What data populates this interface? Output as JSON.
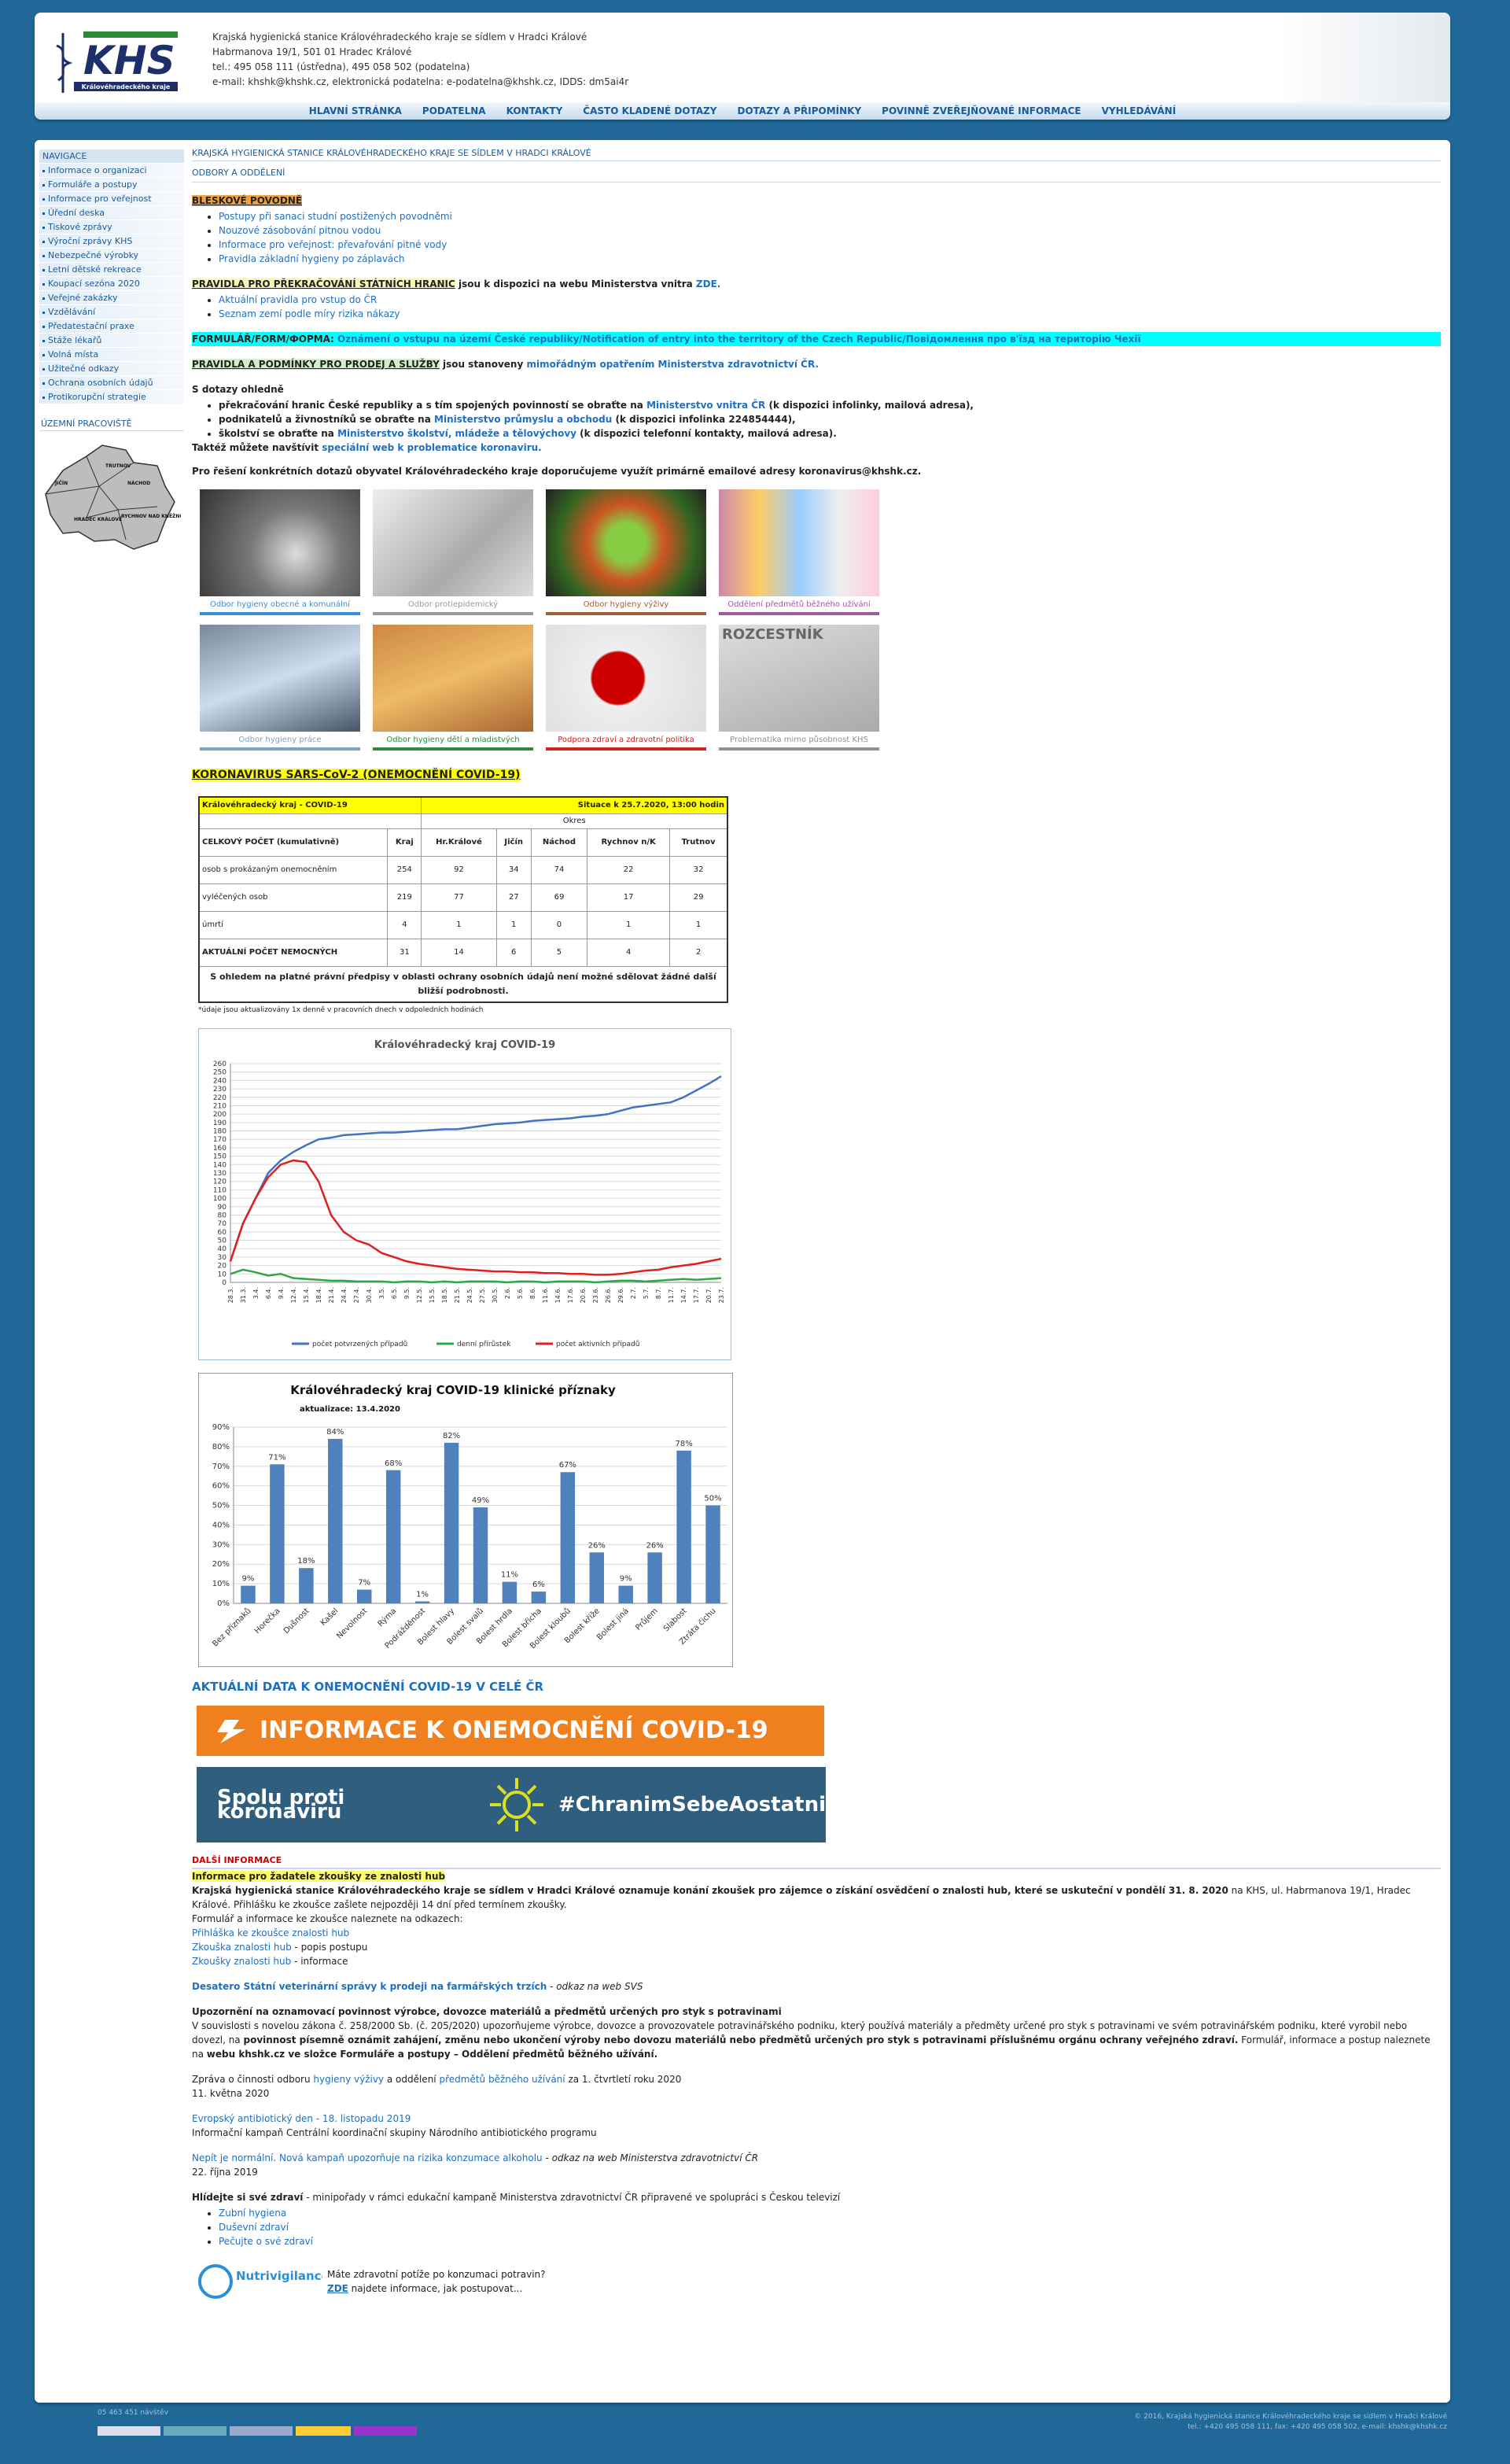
{
  "header": {
    "logo": "KHS",
    "logo_sub": "Královéhradeckého kraje",
    "lines": [
      "Krajská hygienická stanice Královéhradeckého kraje se sídlem v Hradci Králové",
      "Habrmanova 19/1, 501 01 Hradec Králové",
      "tel.: 495 058 111 (ústředna), 495 058 502 (podatelna)",
      "e-mail: khshk@khshk.cz, elektronická podatelna: e-podatelna@khshk.cz, IDDS: dm5ai4r"
    ]
  },
  "nav": [
    "HLAVNÍ STRÁNKA",
    "PODATELNA",
    "KONTAKTY",
    "ČASTO KLADENÉ DOTAZY",
    "DOTAZY A PŘIPOMÍNKY",
    "POVINNĚ ZVEŘEJŇOVANÉ INFORMACE",
    "VYHLEDÁVÁNÍ"
  ],
  "sidebar": {
    "title": "NAVIGACE",
    "links": [
      "Informace o organizaci",
      "Formuláře a postupy",
      "Informace pro veřejnost",
      "Úřední deska",
      "Tiskové zprávy",
      "Výroční zprávy KHS",
      "Nebezpečné výrobky",
      "Letní dětské rekreace",
      "Koupací sezóna 2020",
      "Veřejné zakázky",
      "Vzdělávání",
      "Předatestační praxe",
      "Stáže lékařů",
      "Volná místa",
      "Užitečné odkazy",
      "Ochrana osobních údajů",
      "Protikorupční strategie"
    ],
    "region_title": "ÚZEMNÍ PRACOVIŠTĚ",
    "map_labels": [
      "TRUTNOV",
      "JIČÍN",
      "NÁCHOD",
      "HRADEC KRÁLOVÉ",
      "RYCHNOV NAD KNĚŽNOU"
    ]
  },
  "content": {
    "breadcrumb": "KRAJSKÁ HYGIENICKÁ STANICE KRÁLOVÉHRADECKÉHO KRAJE SE SÍDLEM V HRADCI KRÁLOVÉ",
    "section": "ODBORY A ODDĚLENÍ",
    "floods": {
      "title": "BLESKOVÉ POVODNĚ",
      "links": [
        "Postupy při sanaci studní postižených povodněmi",
        "Nouzové zásobování pitnou vodou",
        "Informace pro veřejnost: převařování pitné vody",
        "Pravidla základní hygieny po záplavách"
      ]
    },
    "borders": {
      "title": "PRAVIDLA PRO PŘEKRAČOVÁNÍ STÁTNÍCH HRANIC",
      "text": " jsou k dispozici na webu Ministerstva vnitra ",
      "link": "ZDE.",
      "links": [
        "Aktuální pravidla pro vstup do ČR",
        "Seznam zemí podle míry rizika nákazy"
      ]
    },
    "form": {
      "title": "FORMULÁŘ/FORM/ФОРМА:",
      "link": " Oznámení o vstupu na území České republiky/Notification of entry into the territory of the Czech Republic/Повідомлення про в'їзд на територію Чехії"
    },
    "sales": {
      "title": "PRAVIDLA A PODMÍNKY PRO PRODEJ A SLUŽBY",
      "text": " jsou stanoveny ",
      "link": "mimořádným opatřením Ministerstva zdravotnictví ČR."
    },
    "questions": {
      "title": "S dotazy ohledně",
      "items": [
        {
          "before": "překračování hranic České republiky a s tím spojených povinností se obraťte na ",
          "link": "Ministerstvo vnitra ČR",
          "after": " (k dispozici infolinky, mailová adresa),"
        },
        {
          "before": "podnikatelů a živnostníků se obraťte na ",
          "link": "Ministerstvo průmyslu a obchodu",
          "after": " (k dispozici infolinka 224854444),"
        },
        {
          "before": "školství se obraťte na ",
          "link": "Ministerstvo školství, mládeže a tělovýchovy",
          "after": " (k dispozici telefonní kontakty, mailová adresa)."
        }
      ],
      "visit": "Taktéž můžete navštívit ",
      "visit_link": "speciální web k problematice koronaviru.",
      "email_note": "Pro řešení konkrétních dotazů obyvatel Královéhradeckého kraje doporučujeme využít primárně emailové adresy koronavirus@khshk.cz."
    },
    "tiles": [
      {
        "label": "Odbor hygieny obecné a komunální",
        "color": "#3b8fd6"
      },
      {
        "label": "Odbor protiepidemický",
        "color": "#9a9a9a"
      },
      {
        "label": "Odbor hygieny výživy",
        "color": "#a0603a"
      },
      {
        "label": "Oddělení předmětů běžného užívání",
        "color": "#a05aa0"
      },
      {
        "label": "Odbor hygieny práce",
        "color": "#7f9fc0"
      },
      {
        "label": "Odbor hygieny dětí a mladistvých",
        "color": "#2e8b3e"
      },
      {
        "label": "Podpora zdraví a zdravotní politika",
        "color": "#d02020"
      },
      {
        "label": "Problematika mimo působnost KHS",
        "color": "#909090"
      }
    ],
    "tile_sign": "ROZCESTNÍK",
    "covid": {
      "title": "KORONAVIRUS SARS-CoV-2 (ONEMOCNĚNÍ COVID-19)",
      "table": {
        "region": "Královéhradecký kraj - COVID-19",
        "situation": "Situace k 25.7.2020, 13:00 hodin",
        "district": "Okres",
        "header": [
          "CELKOVÝ POČET (kumulativně)",
          "Kraj",
          "Hr.Králové",
          "Jičín",
          "Náchod",
          "Rychnov n/K",
          "Trutnov"
        ],
        "rows": [
          [
            "osob s prokázaným onemocněním",
            254,
            92,
            34,
            74,
            22,
            32
          ],
          [
            "vyléčených osob",
            219,
            77,
            27,
            69,
            17,
            29
          ],
          [
            "úmrtí",
            4,
            1,
            1,
            0,
            1,
            1
          ],
          [
            "AKTUÁLNÍ POČET NEMOCNÝCH",
            31,
            14,
            6,
            5,
            4,
            2
          ]
        ],
        "privacy": "S ohledem na platné právní předpisy v oblasti ochrany osobních údajů není možné sdělovat žádné další bližší podrobnosti.",
        "note": "*údaje jsou aktualizovány 1x denně v pracovních dnech v odpoledních hodinách"
      }
    },
    "czech_data": "AKTUÁLNÍ DATA K ONEMOCNĚNÍ COVID-19 V CELÉ ČR",
    "banner_info": "INFORMACE K ONEMOCNĚNÍ COVID-19",
    "banner_together": "Spolu proti koronaviru",
    "banner_hashtag": "#ChranimSebeAostatni",
    "more": {
      "title": "DALŠÍ INFORMACE",
      "mushroom_title": "Informace pro žadatele zkoušky ze znalosti hub",
      "mushroom_bold": "Krajská hygienická stanice Královéhradeckého kraje se sídlem v Hradci Králové oznamuje konání zkoušek pro zájemce o získání osvědčení o znalosti hub, které se uskuteční v pondělí 31. 8. 2020",
      "mushroom_text": " na KHS, ul. Habrmanova 19/1, Hradec Králové. Přihlášku ke zkoušce zašlete nejpozději 14 dní před termínem zkoušky.",
      "mushroom_links_intro": "Formulář a informace ke zkoušce naleznete na odkazech:",
      "mushroom_link1": "Přihláška ke zkoušce znalosti hub",
      "mushroom_link2": "Zkouška znalosti hub",
      "mushroom_link2_after": " - popis postupu",
      "mushroom_link3": "Zkoušky znalosti hub",
      "mushroom_link3_after": " - informace",
      "svs_link": "Desatero Státní veterinární správy k prodeji na farmářských trzích",
      "svs_after": " - odkaz na web SVS",
      "notice_title": "Upozornění na oznamovací povinnost výrobce, dovozce materiálů a předmětů určených pro styk s potravinami",
      "notice_a": "V souvislosti s novelou zákona č. 258/2000 Sb. (č. 205/2020) upozorňujeme výrobce, dovozce a provozovatele potravinářského podniku, který používá materiály a předměty určené pro styk s potravinami ve svém potravinářském podniku, které vyrobil nebo dovezl, na ",
      "notice_b": "povinnost písemně oznámit zahájení, změnu nebo ukončení výroby nebo dovozu materiálů nebo předmětů určených pro styk s potravinami příslušnému orgánu ochrany veřejného zdraví.",
      "notice_c": " Formulář, informace a postup naleznete na ",
      "notice_d": "webu khshk.cz ve složce Formuláře a postupy – Oddělení předmětů běžného užívání.",
      "report_a": "Zpráva o činnosti odboru ",
      "report_link1": "hygieny výživy",
      "report_b": " a oddělení ",
      "report_link2": "předmětů běžného užívání",
      "report_c": " za 1. čtvrtletí roku 2020",
      "report_date": "11. května 2020",
      "eu_link": "Evropský antibiotický den - 18. listopadu 2019",
      "eu_text": "Informační kampaň Centrální koordinační skupiny Národního antibiotického programu",
      "alc_link": "Nepít je normální. Nová kampaň upozorňuje na rizika konzumace alkoholu",
      "alc_after": " - odkaz na web Ministerstva zdravotnictví ČR",
      "alc_date": "22. října 2019",
      "health_title": "Hlídejte si své zdraví",
      "health_text": " - minipořady v rámci edukační kampaně Ministerstva zdravotnictví ČR připravené ve spolupráci s Českou televizí",
      "health_links": [
        "Zubní hygiena",
        "Duševní zdraví",
        "Pečujte o své zdraví"
      ],
      "nutri_logo": "Nutrivigilance",
      "nutri_q": "Máte zdravotní potíže po konzumaci potravin?",
      "nutri_link": "ZDE",
      "nutri_after": " najdete informace, jak postupovat..."
    }
  },
  "chart_data": [
    {
      "type": "line",
      "title": "Královéhradecký kraj COVID-19",
      "categories": [
        "28.3.",
        "31.3.",
        "3.4.",
        "6.4.",
        "9.4.",
        "12.4.",
        "15.4.",
        "18.4.",
        "21.4.",
        "24.4.",
        "27.4.",
        "30.4.",
        "3.5.",
        "6.5.",
        "9.5.",
        "12.5.",
        "15.5.",
        "18.5.",
        "21.5.",
        "24.5.",
        "27.5.",
        "30.5.",
        "2.6.",
        "5.6.",
        "8.6.",
        "11.6.",
        "14.6.",
        "17.6.",
        "20.6.",
        "23.6.",
        "26.6.",
        "29.6.",
        "2.7.",
        "5.7.",
        "8.7.",
        "11.7.",
        "14.7.",
        "17.7.",
        "20.7.",
        "23.7."
      ],
      "series": [
        {
          "name": "počet potvrzených případů",
          "color": "#4472c4",
          "values": [
            25,
            70,
            100,
            130,
            145,
            155,
            163,
            170,
            172,
            175,
            176,
            177,
            178,
            178,
            179,
            180,
            181,
            182,
            182,
            184,
            186,
            188,
            189,
            190,
            192,
            193,
            194,
            195,
            197,
            198,
            200,
            204,
            208,
            210,
            212,
            214,
            220,
            228,
            236,
            245
          ]
        },
        {
          "name": "denní přírůstek",
          "color": "#2ea84a",
          "values": [
            10,
            15,
            12,
            8,
            10,
            5,
            4,
            3,
            2,
            2,
            1,
            1,
            1,
            0,
            1,
            1,
            0,
            1,
            0,
            1,
            1,
            1,
            0,
            1,
            1,
            0,
            1,
            1,
            1,
            0,
            1,
            2,
            2,
            1,
            2,
            3,
            4,
            3,
            4,
            5
          ]
        },
        {
          "name": "počet aktivních případů",
          "color": "#e02020",
          "values": [
            25,
            70,
            100,
            125,
            140,
            145,
            143,
            120,
            80,
            60,
            50,
            45,
            35,
            30,
            25,
            22,
            20,
            18,
            16,
            15,
            14,
            13,
            13,
            12,
            12,
            11,
            11,
            10,
            10,
            9,
            9,
            10,
            12,
            14,
            15,
            18,
            20,
            22,
            25,
            28
          ]
        }
      ],
      "ylim": [
        0,
        260
      ],
      "yticks": [
        0,
        10,
        20,
        30,
        40,
        50,
        60,
        70,
        80,
        90,
        100,
        110,
        120,
        130,
        140,
        150,
        160,
        170,
        180,
        190,
        200,
        210,
        220,
        230,
        240,
        250,
        260
      ],
      "grid": true,
      "legend": "bottom"
    },
    {
      "type": "bar",
      "title": "Královéhradecký kraj COVID-19 klinické příznaky",
      "subtitle": "aktualizace: 13.4.2020",
      "categories": [
        "Bez příznaků",
        "Horečka",
        "Dušnost",
        "Kašel",
        "Nevolnost",
        "Rýma",
        "Podrážděnost",
        "Bolest hlavy",
        "Bolest svalů",
        "Bolest hrdla",
        "Bolest břicha",
        "Bolest kloubů",
        "Bolest kříže",
        "Bolest jiná",
        "Průjem",
        "Slabost",
        "Ztráta čichu"
      ],
      "values": [
        9,
        71,
        18,
        84,
        7,
        68,
        1,
        82,
        49,
        11,
        6,
        67,
        26,
        9,
        26,
        78,
        50
      ],
      "value_labels": [
        "9%",
        "71%",
        "18%",
        "84%",
        "7%",
        "68%",
        "1%",
        "82%",
        "49%",
        "11%",
        "6%",
        "67%",
        "26%",
        "9%",
        "26%",
        "78%",
        "50%"
      ],
      "color": "#4f81bd",
      "ylim": [
        0,
        90
      ],
      "yticks": [
        {
          "value": 0,
          "label": "0%"
        },
        {
          "value": 10,
          "label": "10%"
        },
        {
          "value": 20,
          "label": "20%"
        },
        {
          "value": 30,
          "label": "30%"
        },
        {
          "value": 40,
          "label": "40%"
        },
        {
          "value": 50,
          "label": "50%"
        },
        {
          "value": 60,
          "label": "60%"
        },
        {
          "value": 70,
          "label": "70%"
        },
        {
          "value": 80,
          "label": "80%"
        },
        {
          "value": 90,
          "label": "90%"
        }
      ],
      "grid": true
    }
  ],
  "footer": {
    "visits": "05 463 451 návštěv",
    "copyright": [
      "© 2016, Krajská hygienická stanice Královéhradeckého kraje se sídlem v Hradci Králové",
      "tel.: +420 495 058 111, fax: +420 495 058 502, e-mail: khshk@khshk.cz"
    ]
  }
}
